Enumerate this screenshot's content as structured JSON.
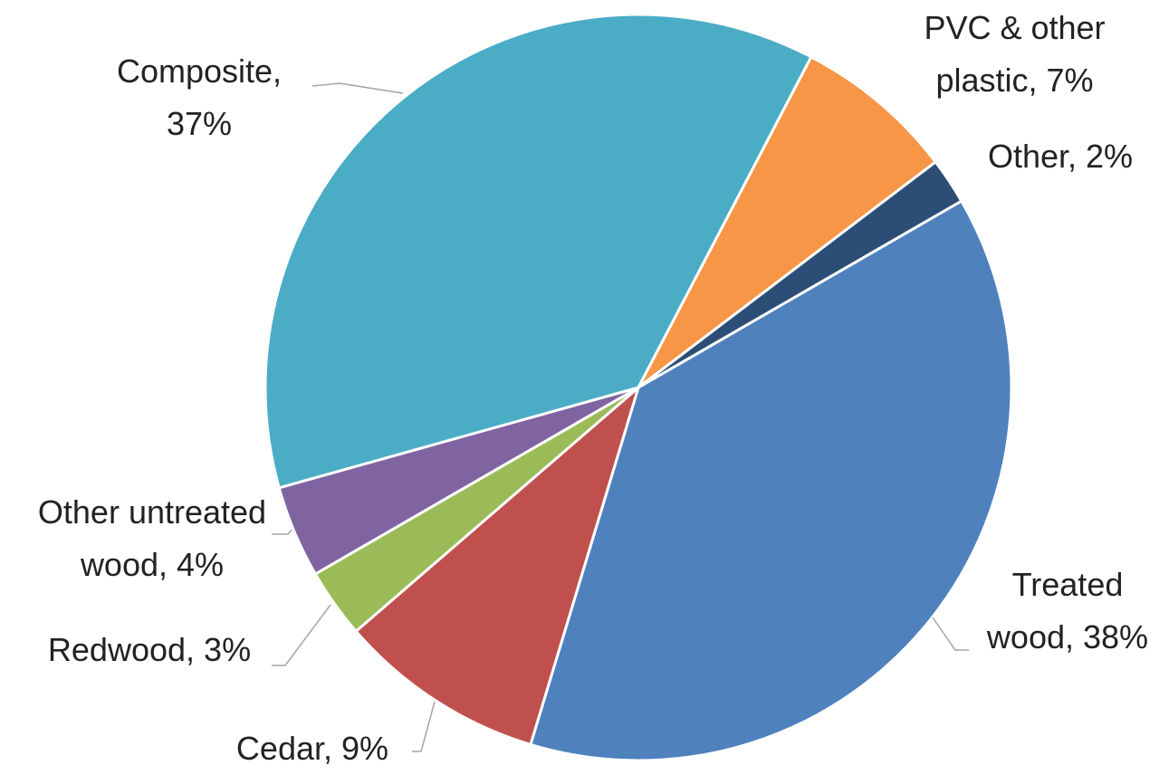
{
  "chart_data": {
    "type": "pie",
    "categories": [
      "Treated wood",
      "Cedar",
      "Redwood",
      "Other untreated wood",
      "Composite",
      "PVC & other plastic",
      "Other"
    ],
    "values": [
      38,
      9,
      3,
      4,
      37,
      7,
      2
    ],
    "value_labels": [
      "38%",
      "9%",
      "3%",
      "4%",
      "37%",
      "7%",
      "2%"
    ],
    "colors": [
      "#4f81bd",
      "#c0504d",
      "#9bbb59",
      "#8064a2",
      "#4bacc6",
      "#f79646",
      "#2c4d75"
    ]
  }
}
